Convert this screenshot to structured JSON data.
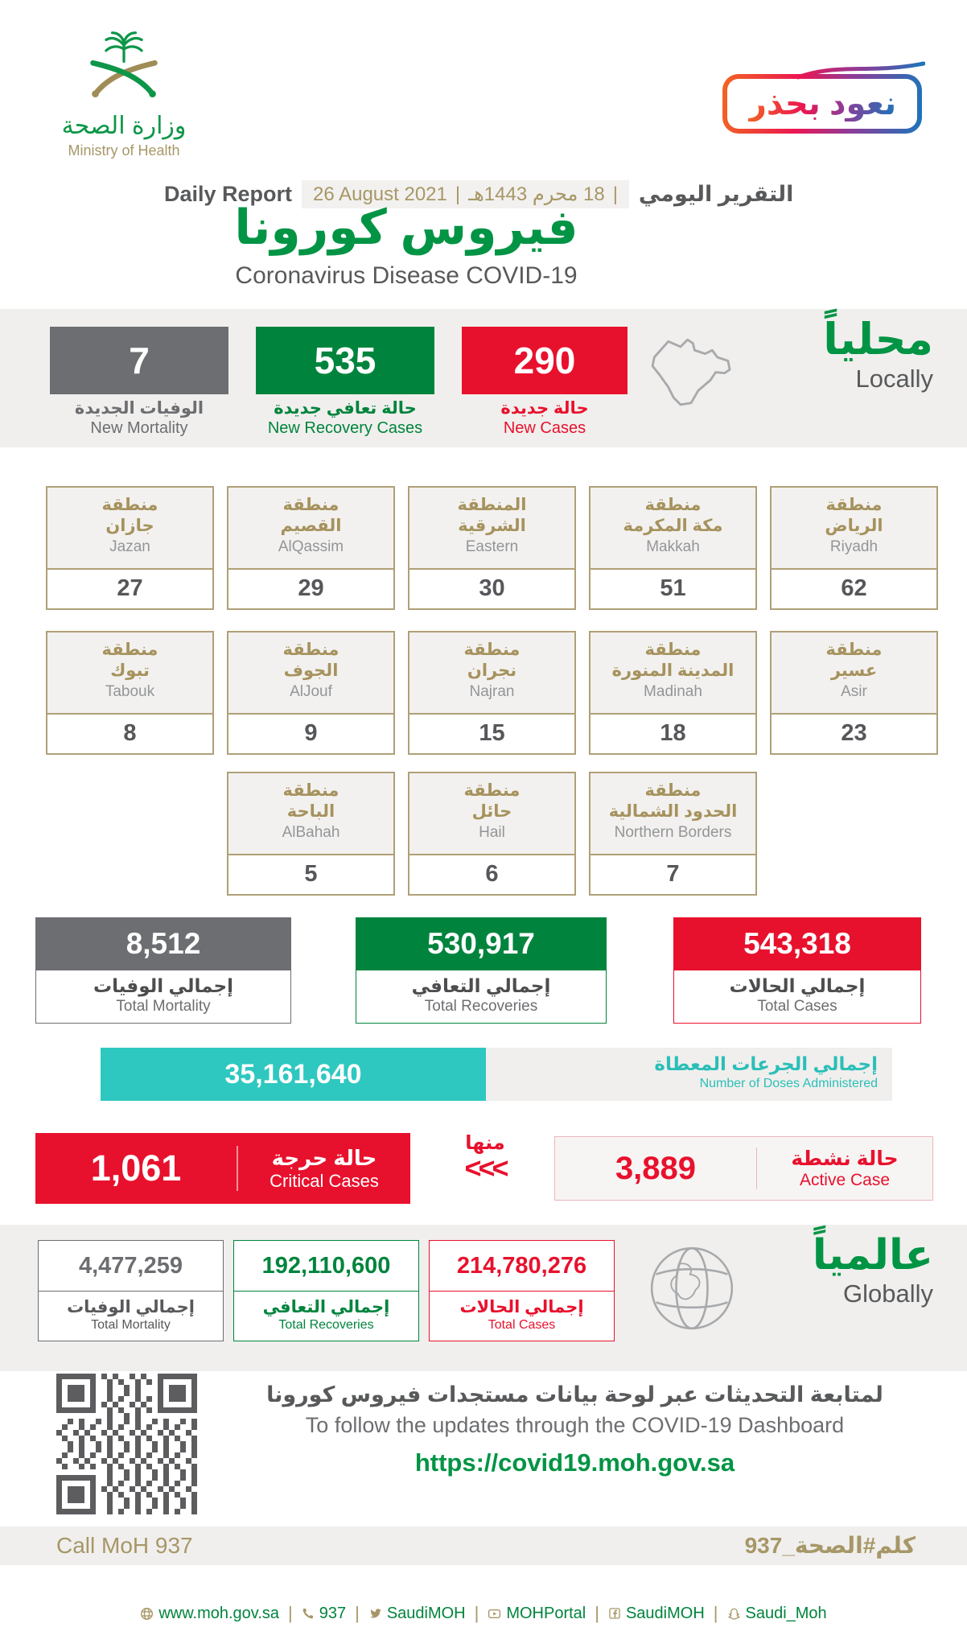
{
  "colors": {
    "green": "#009444",
    "green_box": "#00843d",
    "red": "#e8112d",
    "gray_box": "#6d6e71",
    "gold": "#a79767",
    "teal": "#2ec8c0",
    "band_bg": "#f0efed"
  },
  "header": {
    "ministry_ar": "وزارة الصحة",
    "ministry_en": "Ministry of Health",
    "badge": "نعود بحذر",
    "daily_report_en": "Daily Report",
    "date_gregorian": "26 August 2021",
    "date_hijri": "18 محرم 1443هـ",
    "date_separator": "|",
    "daily_report_ar": "التقرير اليومي",
    "title_ar": "فيروس كورونا",
    "title_en": "Coronavirus Disease COVID-19"
  },
  "locally": {
    "heading_ar": "محلياً",
    "heading_en": "Locally",
    "new_mortality": {
      "value": "7",
      "label_ar": "الوفيات الجديدة",
      "label_en": "New Mortality"
    },
    "new_recoveries": {
      "value": "535",
      "label_ar": "حالة تعافي جديدة",
      "label_en": "New Recovery Cases"
    },
    "new_cases": {
      "value": "290",
      "label_ar": "حالة جديدة",
      "label_en": "New Cases"
    },
    "regions": [
      {
        "ar1": "منطقة",
        "ar2": "جازان",
        "en": "Jazan",
        "value": "27"
      },
      {
        "ar1": "منطقة",
        "ar2": "القصيم",
        "en": "AlQassim",
        "value": "29"
      },
      {
        "ar1": "المنطقة",
        "ar2": "الشرقية",
        "en": "Eastern",
        "value": "30"
      },
      {
        "ar1": "منطقة",
        "ar2": "مكة المكرمة",
        "en": "Makkah",
        "value": "51"
      },
      {
        "ar1": "منطقة",
        "ar2": "الرياض",
        "en": "Riyadh",
        "value": "62"
      },
      {
        "ar1": "منطقة",
        "ar2": "تبوك",
        "en": "Tabouk",
        "value": "8"
      },
      {
        "ar1": "منطقة",
        "ar2": "الجوف",
        "en": "AlJouf",
        "value": "9"
      },
      {
        "ar1": "منطقة",
        "ar2": "نجران",
        "en": "Najran",
        "value": "15"
      },
      {
        "ar1": "منطقة",
        "ar2": "المدينة المنورة",
        "en": "Madinah",
        "value": "18"
      },
      {
        "ar1": "منطقة",
        "ar2": "عسير",
        "en": "Asir",
        "value": "23"
      },
      {
        "ar1": "منطقة",
        "ar2": "الباحة",
        "en": "AlBahah",
        "value": "5"
      },
      {
        "ar1": "منطقة",
        "ar2": "حائل",
        "en": "Hail",
        "value": "6"
      },
      {
        "ar1": "منطقة",
        "ar2": "الحدود الشمالية",
        "en": "Northern Borders",
        "value": "7"
      }
    ],
    "totals": [
      {
        "value": "8,512",
        "label_ar": "إجمالي الوفيات",
        "label_en": "Total Mortality"
      },
      {
        "value": "530,917",
        "label_ar": "إجمالي التعافي",
        "label_en": "Total Recoveries"
      },
      {
        "value": "543,318",
        "label_ar": "إجمالي الحالات",
        "label_en": "Total Cases"
      }
    ],
    "doses": {
      "value": "35,161,640",
      "label_ar": "إجمالي الجرعات المعطاة",
      "label_en": "Number of Doses Administered"
    },
    "critical": {
      "value": "1,061",
      "label_ar": "حالة حرجة",
      "label_en": "Critical Cases"
    },
    "of_which_ar": "منها",
    "chevrons": "<<<",
    "active": {
      "value": "3,889",
      "label_ar": "حالة نشطة",
      "label_en": "Active Case"
    }
  },
  "globally": {
    "heading_ar": "عالمياً",
    "heading_en": "Globally",
    "totals": [
      {
        "value": "4,477,259",
        "label_ar": "إجمالي الوفيات",
        "label_en": "Total Mortality"
      },
      {
        "value": "192,110,600",
        "label_ar": "إجمالي التعافي",
        "label_en": "Total Recoveries"
      },
      {
        "value": "214,780,276",
        "label_ar": "إجمالي الحالات",
        "label_en": "Total Cases"
      }
    ]
  },
  "dashboard": {
    "note_ar": "لمتابعة التحديثات عبر لوحة بيانات مستجدات فيروس كورونا",
    "note_en": "To follow the updates through the COVID-19 Dashboard",
    "url": "https://covid19.moh.gov.sa"
  },
  "call_bar": {
    "left": "Call MoH 937",
    "right": "كلم#الصحة_937"
  },
  "footer": {
    "separator": "|",
    "links": [
      {
        "icon": "globe-icon",
        "label": "www.moh.gov.sa"
      },
      {
        "icon": "phone-icon",
        "label": "937"
      },
      {
        "icon": "twitter-icon",
        "label": "SaudiMOH"
      },
      {
        "icon": "youtube-icon",
        "label": "MOHPortal"
      },
      {
        "icon": "facebook-icon",
        "label": "SaudiMOH"
      },
      {
        "icon": "snapchat-icon",
        "label": "Saudi_Moh"
      }
    ]
  }
}
